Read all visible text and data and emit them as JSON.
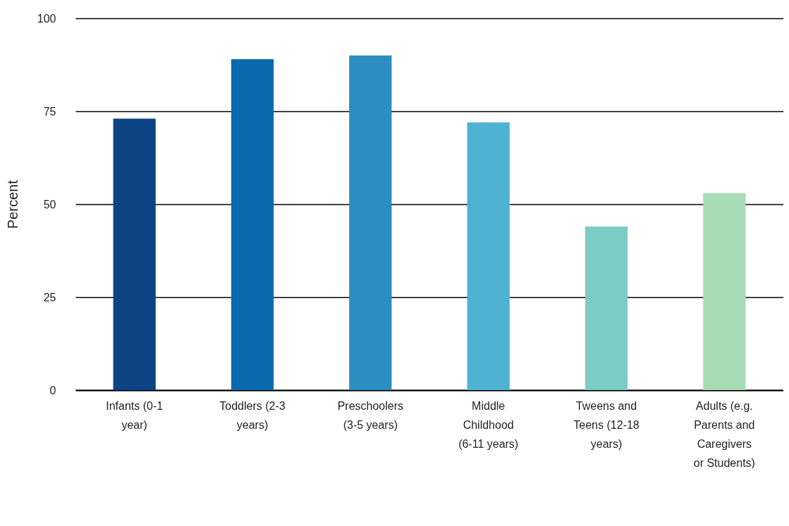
{
  "chart_data": {
    "type": "bar",
    "ylabel": "Percent",
    "categories": [
      "Infants (0-1 year)",
      "Toddlers (2-3 years)",
      "Preschoolers (3-5 years)",
      "Middle Childhood (6-11 years)",
      "Tweens and Teens (12-18 years)",
      "Adults (e.g. Parents and Caregivers or Students)"
    ],
    "values": [
      73,
      89,
      90,
      72,
      44,
      53
    ],
    "colors": [
      "#0b4383",
      "#0a6aad",
      "#2b8dc0",
      "#4eb2d3",
      "#7accc4",
      "#a8dcb5"
    ],
    "ylim": [
      0,
      100
    ],
    "yticks": [
      0,
      25,
      50,
      75,
      100
    ],
    "grid": "y"
  }
}
